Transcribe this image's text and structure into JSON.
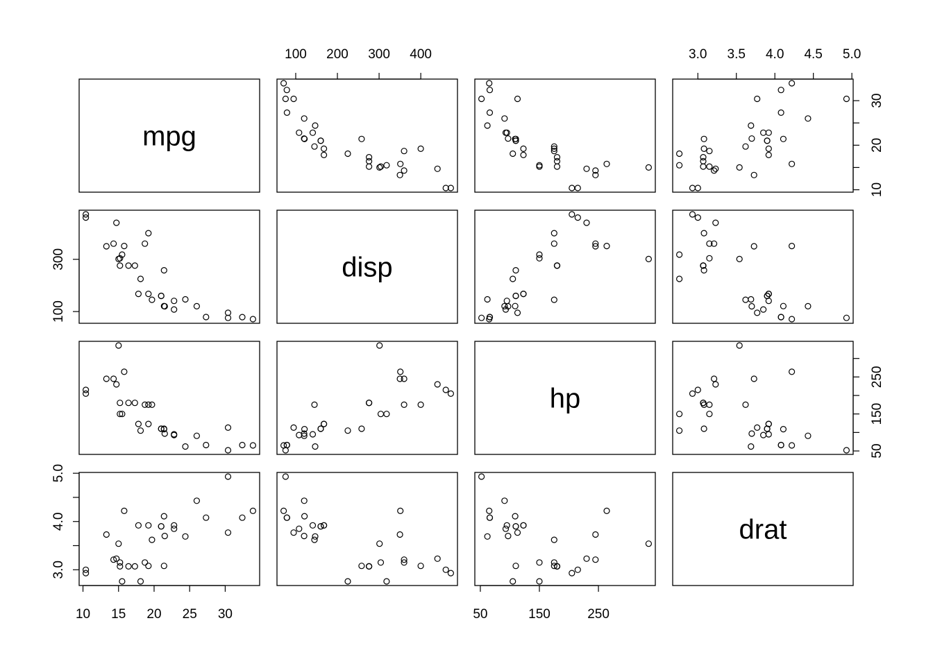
{
  "chart_data": {
    "type": "scatter-matrix",
    "variables": [
      "mpg",
      "disp",
      "hp",
      "drat"
    ],
    "data": {
      "mpg": [
        21.0,
        21.0,
        22.8,
        21.4,
        18.7,
        18.1,
        14.3,
        24.4,
        22.8,
        19.2,
        17.8,
        16.4,
        17.3,
        15.2,
        10.4,
        10.4,
        14.7,
        32.4,
        30.4,
        33.9,
        21.5,
        15.5,
        15.2,
        13.3,
        19.2,
        27.3,
        26.0,
        30.4,
        15.8,
        19.7,
        15.0,
        21.4
      ],
      "disp": [
        160,
        160,
        108,
        258,
        360,
        225,
        360,
        146.7,
        140.8,
        167.6,
        167.6,
        275.8,
        275.8,
        275.8,
        472,
        460,
        440,
        78.7,
        75.7,
        71.1,
        120.1,
        318,
        304,
        350,
        400,
        79,
        120.3,
        95.1,
        351,
        145,
        301,
        121
      ],
      "hp": [
        110,
        110,
        93,
        110,
        175,
        105,
        245,
        62,
        95,
        123,
        123,
        180,
        180,
        180,
        205,
        215,
        230,
        66,
        52,
        65,
        97,
        150,
        150,
        245,
        175,
        66,
        91,
        113,
        264,
        175,
        335,
        109
      ],
      "drat": [
        3.9,
        3.9,
        3.85,
        3.08,
        3.15,
        2.76,
        3.21,
        3.69,
        3.92,
        3.92,
        3.92,
        3.07,
        3.07,
        3.07,
        2.93,
        3.0,
        3.23,
        4.08,
        4.93,
        4.22,
        3.7,
        2.76,
        3.15,
        3.73,
        3.08,
        4.08,
        4.43,
        3.77,
        4.22,
        3.62,
        3.54,
        4.11
      ]
    },
    "ranges": {
      "mpg": [
        10.4,
        33.9
      ],
      "disp": [
        71.1,
        472
      ],
      "hp": [
        52,
        335
      ],
      "drat": [
        2.76,
        4.93
      ]
    },
    "ticks": {
      "mpg": {
        "values": [
          10,
          15,
          20,
          25,
          30
        ],
        "labels": [
          "10",
          "15",
          "20",
          "25",
          "30"
        ]
      },
      "disp": {
        "values": [
          100,
          200,
          300,
          400
        ],
        "labels": [
          "100",
          "200",
          "300",
          "400"
        ]
      },
      "disp_left": {
        "values": [
          100,
          300
        ],
        "labels": [
          "100",
          "300"
        ]
      },
      "hp": {
        "values": [
          50,
          150,
          250
        ],
        "labels": [
          "50",
          "150",
          "250"
        ]
      },
      "hp_right": {
        "values": [
          50,
          100,
          150,
          200,
          250,
          300
        ],
        "labels": [
          "50",
          "",
          "150",
          "",
          "250",
          ""
        ]
      },
      "drat": {
        "values": [
          3.0,
          3.5,
          4.0,
          4.5,
          5.0
        ],
        "labels": [
          "3.0",
          "3.5",
          "4.0",
          "4.5",
          "5.0"
        ]
      },
      "drat_left": {
        "values": [
          3.0,
          3.5,
          4.0,
          4.5,
          5.0
        ],
        "labels": [
          "3.0",
          "",
          "4.0",
          "",
          "5.0"
        ]
      },
      "mpg_right": {
        "values": [
          10,
          15,
          20,
          25,
          30
        ],
        "labels": [
          "10",
          "",
          "20",
          "",
          "30"
        ]
      }
    },
    "axes": {
      "top": [
        "disp",
        "drat"
      ],
      "bottom": [
        "mpg",
        "hp"
      ],
      "left": [
        "disp",
        "drat"
      ],
      "right": [
        "mpg",
        "hp"
      ]
    },
    "grid": false,
    "legend": "none"
  }
}
